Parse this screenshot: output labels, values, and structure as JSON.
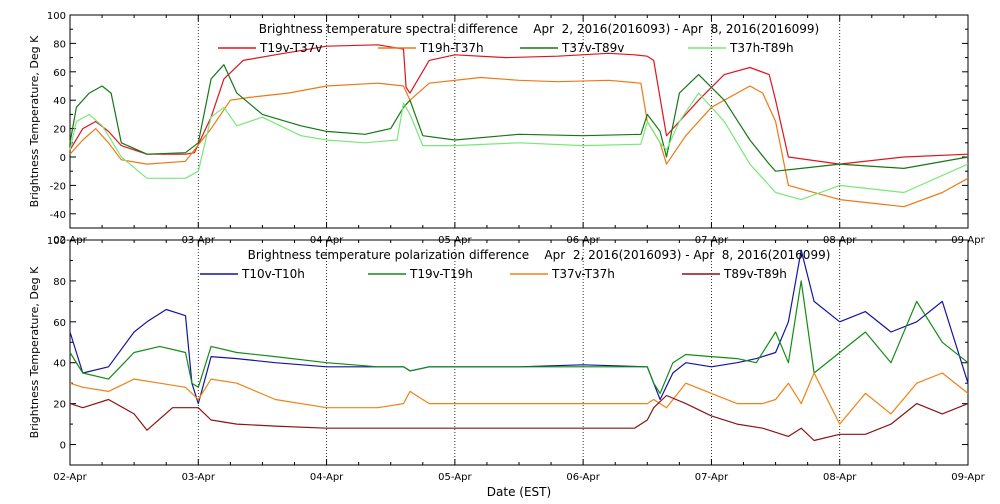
{
  "page": {
    "xlabel": "Date (EST)"
  },
  "chart_data": [
    {
      "type": "line",
      "title": "Brightness temperature spectral difference    Apr  2, 2016(2016093) - Apr  8, 2016(2016099)",
      "ylabel": "Brightness Temperature, Deg K",
      "xlabel": "",
      "xlim": [
        0,
        7
      ],
      "ylim": [
        -50,
        100
      ],
      "yticks": [
        -40,
        -20,
        0,
        20,
        40,
        60,
        80,
        100
      ],
      "xtick_labels": [
        "02-Apr",
        "03-Apr",
        "04-Apr",
        "05-Apr",
        "06-Apr",
        "07-Apr",
        "08-Apr",
        "09-Apr"
      ],
      "xticks": [
        0,
        1,
        2,
        3,
        4,
        5,
        6,
        7
      ],
      "grid": "dotted vertical",
      "legend_position": "top",
      "series": [
        {
          "name": "T19v-T37v",
          "color": "#e0141e",
          "x": [
            0.0,
            0.1,
            0.2,
            0.3,
            0.4,
            0.6,
            0.9,
            0.97,
            1.1,
            1.2,
            1.35,
            1.6,
            2.0,
            2.4,
            2.6,
            2.62,
            2.65,
            2.8,
            3.0,
            3.4,
            3.8,
            4.2,
            4.4,
            4.5,
            4.55,
            4.65,
            4.9,
            5.1,
            5.3,
            5.45,
            5.5,
            5.6,
            6.0,
            6.5,
            7.0
          ],
          "y": [
            5,
            20,
            25,
            18,
            8,
            2,
            2,
            3,
            28,
            55,
            68,
            72,
            78,
            79,
            76,
            49,
            45,
            68,
            72,
            70,
            71,
            73,
            72,
            71,
            68,
            15,
            40,
            58,
            63,
            58,
            40,
            0,
            -5,
            0,
            2
          ]
        },
        {
          "name": "T19h-T37h",
          "color": "#f07814",
          "x": [
            0.0,
            0.1,
            0.2,
            0.3,
            0.4,
            0.6,
            0.9,
            1.1,
            1.25,
            1.4,
            1.7,
            2.0,
            2.4,
            2.6,
            2.65,
            2.8,
            3.2,
            3.5,
            3.8,
            4.2,
            4.45,
            4.5,
            4.6,
            4.65,
            4.8,
            5.0,
            5.2,
            5.3,
            5.4,
            5.5,
            5.6,
            6.0,
            6.5,
            6.8,
            7.0
          ],
          "y": [
            2,
            12,
            20,
            10,
            -2,
            -5,
            -3,
            20,
            40,
            42,
            45,
            50,
            52,
            50,
            40,
            52,
            56,
            54,
            53,
            54,
            52,
            25,
            10,
            -5,
            15,
            35,
            45,
            50,
            45,
            25,
            -20,
            -30,
            -35,
            -25,
            -15
          ]
        },
        {
          "name": "T37v-T89v",
          "color": "#147814",
          "x": [
            0.0,
            0.05,
            0.15,
            0.25,
            0.32,
            0.4,
            0.6,
            0.9,
            1.0,
            1.1,
            1.2,
            1.3,
            1.5,
            1.8,
            2.0,
            2.3,
            2.5,
            2.6,
            2.65,
            2.75,
            3.0,
            3.5,
            4.0,
            4.45,
            4.5,
            4.6,
            4.65,
            4.75,
            4.9,
            5.1,
            5.3,
            5.45,
            5.5,
            5.7,
            6.0,
            6.5,
            7.0
          ],
          "y": [
            10,
            35,
            45,
            50,
            45,
            10,
            2,
            3,
            10,
            55,
            65,
            45,
            30,
            22,
            18,
            16,
            20,
            35,
            40,
            15,
            12,
            16,
            15,
            16,
            30,
            18,
            0,
            45,
            58,
            40,
            12,
            -5,
            -10,
            -8,
            -5,
            -8,
            0
          ]
        },
        {
          "name": "T37h-T89h",
          "color": "#78e878",
          "x": [
            0.0,
            0.05,
            0.15,
            0.25,
            0.3,
            0.4,
            0.6,
            0.9,
            1.0,
            1.1,
            1.2,
            1.3,
            1.5,
            1.8,
            2.0,
            2.3,
            2.55,
            2.6,
            2.65,
            2.75,
            3.0,
            3.5,
            4.0,
            4.45,
            4.5,
            4.6,
            4.65,
            4.75,
            4.9,
            5.1,
            5.3,
            5.45,
            5.5,
            5.7,
            6.0,
            6.5,
            7.0
          ],
          "y": [
            5,
            25,
            30,
            22,
            15,
            0,
            -15,
            -15,
            -10,
            28,
            35,
            22,
            28,
            15,
            12,
            10,
            12,
            38,
            30,
            8,
            8,
            10,
            8,
            9,
            25,
            10,
            5,
            25,
            45,
            25,
            -5,
            -20,
            -25,
            -30,
            -20,
            -25,
            -5
          ]
        }
      ]
    },
    {
      "type": "line",
      "title": "Brightness temperature polarization difference    Apr  2, 2016(2016093) - Apr  8, 2016(2016099)",
      "ylabel": "Brightness Temperature, Deg K",
      "xlabel": "Date (EST)",
      "xlim": [
        0,
        7
      ],
      "ylim": [
        -10,
        100
      ],
      "yticks": [
        0,
        20,
        40,
        60,
        80,
        100
      ],
      "xtick_labels": [
        "02-Apr",
        "03-Apr",
        "04-Apr",
        "05-Apr",
        "06-Apr",
        "07-Apr",
        "08-Apr",
        "09-Apr"
      ],
      "xticks": [
        0,
        1,
        2,
        3,
        4,
        5,
        6,
        7
      ],
      "grid": "dotted vertical",
      "legend_position": "top",
      "series": [
        {
          "name": "T10v-T10h",
          "color": "#1414a0",
          "x": [
            0.0,
            0.1,
            0.3,
            0.5,
            0.6,
            0.75,
            0.85,
            0.9,
            0.95,
            1.0,
            1.1,
            1.3,
            1.6,
            2.0,
            2.4,
            2.6,
            2.65,
            2.8,
            3.0,
            3.5,
            4.0,
            4.5,
            4.55,
            4.6,
            4.7,
            4.8,
            5.0,
            5.2,
            5.35,
            5.5,
            5.6,
            5.7,
            5.8,
            6.0,
            6.2,
            6.4,
            6.6,
            6.8,
            7.0
          ],
          "y": [
            55,
            35,
            38,
            55,
            60,
            66,
            64,
            63,
            30,
            20,
            43,
            42,
            40,
            38,
            38,
            38,
            36,
            38,
            38,
            38,
            39,
            38,
            30,
            22,
            35,
            40,
            38,
            40,
            42,
            45,
            60,
            95,
            70,
            60,
            65,
            55,
            60,
            70,
            30
          ]
        },
        {
          "name": "T19v-T19h",
          "color": "#148c14",
          "x": [
            0.0,
            0.1,
            0.3,
            0.5,
            0.7,
            0.9,
            0.95,
            1.0,
            1.1,
            1.3,
            1.6,
            2.0,
            2.4,
            2.6,
            2.65,
            2.8,
            3.0,
            3.5,
            4.0,
            4.5,
            4.55,
            4.6,
            4.7,
            4.8,
            5.0,
            5.2,
            5.35,
            5.5,
            5.6,
            5.7,
            5.8,
            6.0,
            6.2,
            6.4,
            6.6,
            6.8,
            7.0
          ],
          "y": [
            45,
            35,
            32,
            45,
            48,
            45,
            30,
            28,
            48,
            45,
            43,
            40,
            38,
            38,
            36,
            38,
            38,
            38,
            38,
            38,
            30,
            25,
            40,
            44,
            43,
            42,
            40,
            55,
            40,
            80,
            35,
            45,
            55,
            40,
            70,
            50,
            40
          ]
        },
        {
          "name": "T37v-T37h",
          "color": "#f08214",
          "x": [
            0.0,
            0.1,
            0.3,
            0.5,
            0.7,
            0.9,
            1.0,
            1.1,
            1.3,
            1.6,
            2.0,
            2.4,
            2.6,
            2.65,
            2.7,
            2.8,
            3.0,
            3.5,
            4.0,
            4.5,
            4.55,
            4.65,
            4.8,
            5.0,
            5.2,
            5.4,
            5.5,
            5.6,
            5.7,
            5.8,
            6.0,
            6.2,
            6.4,
            6.6,
            6.8,
            7.0
          ],
          "y": [
            30,
            28,
            26,
            32,
            30,
            28,
            22,
            32,
            30,
            22,
            18,
            18,
            20,
            26,
            24,
            20,
            20,
            20,
            20,
            20,
            22,
            18,
            30,
            25,
            20,
            20,
            22,
            30,
            20,
            35,
            10,
            25,
            15,
            30,
            35,
            25
          ]
        },
        {
          "name": "T89v-T89h",
          "color": "#8c1414",
          "x": [
            0.0,
            0.1,
            0.3,
            0.5,
            0.6,
            0.8,
            1.0,
            1.1,
            1.3,
            1.6,
            2.0,
            2.4,
            2.8,
            3.2,
            3.6,
            4.0,
            4.4,
            4.5,
            4.55,
            4.65,
            4.8,
            5.0,
            5.2,
            5.4,
            5.5,
            5.6,
            5.7,
            5.8,
            6.0,
            6.2,
            6.4,
            6.6,
            6.8,
            7.0
          ],
          "y": [
            20,
            18,
            22,
            15,
            7,
            18,
            18,
            12,
            10,
            9,
            8,
            8,
            8,
            8,
            8,
            8,
            8,
            12,
            18,
            24,
            20,
            14,
            10,
            8,
            6,
            4,
            8,
            2,
            5,
            5,
            10,
            20,
            15,
            20
          ]
        }
      ]
    }
  ]
}
